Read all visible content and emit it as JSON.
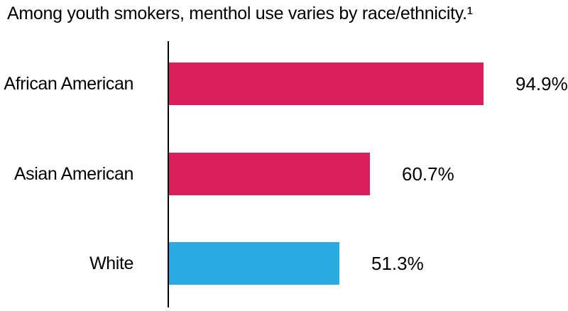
{
  "page": {
    "background": "#FFFFFF"
  },
  "chart_data": {
    "type": "bar",
    "orientation": "horizontal",
    "title": "Among youth smokers, menthol use varies by race/ethnicity.¹",
    "categories": [
      "African American",
      "Asian American",
      "White"
    ],
    "values": [
      94.9,
      60.7,
      51.3
    ],
    "value_labels": [
      "94.9%",
      "60.7%",
      "51.3%"
    ],
    "unit": "%",
    "bar_colors": [
      "#D91E5B",
      "#D91E5B",
      "#29ABE2"
    ],
    "highlight_color": "#D91E5B",
    "comparison_color": "#29ABE2",
    "axis_color": "#000000",
    "text_color": "#000000",
    "xlim": [
      0,
      120
    ],
    "grid": false,
    "legend": false
  }
}
